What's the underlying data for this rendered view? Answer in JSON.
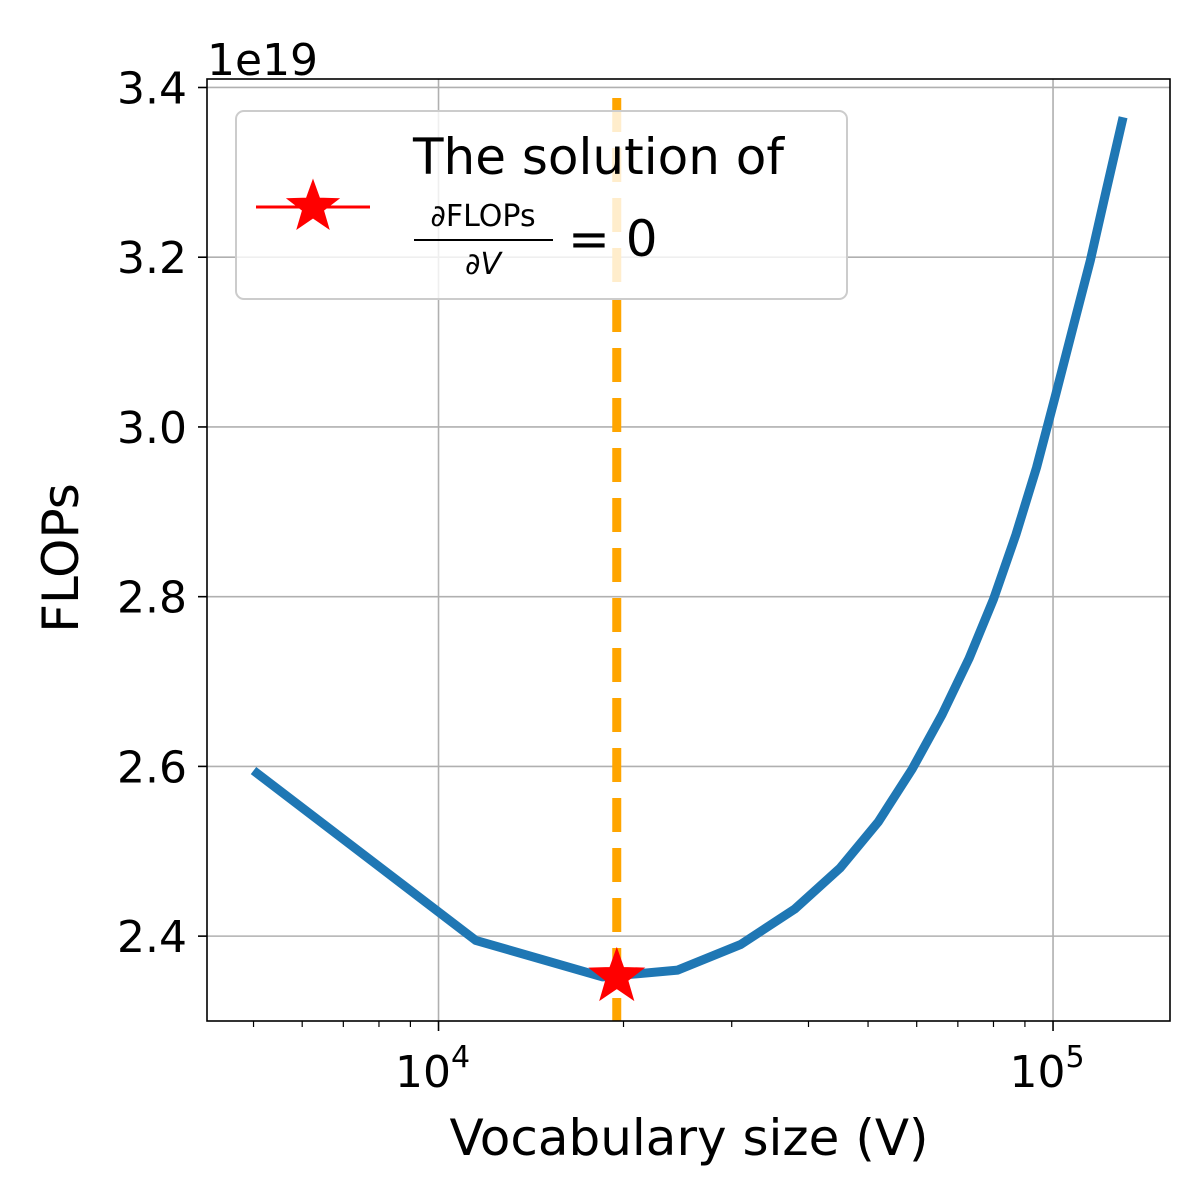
{
  "chart_data": {
    "type": "line",
    "xscale": "log",
    "xlabel": "Vocabulary size (V)",
    "ylabel": "FLOPs",
    "y_offset_label": "1e19",
    "xlim": [
      4200,
      155000
    ],
    "ylim": [
      2.3,
      3.41
    ],
    "x_ticks": [
      {
        "value": 10000,
        "base": "10",
        "exp": "4"
      },
      {
        "value": 100000,
        "base": "10",
        "exp": "5"
      }
    ],
    "y_ticks": [
      {
        "value": 2.4,
        "label": "2.4"
      },
      {
        "value": 2.6,
        "label": "2.6"
      },
      {
        "value": 2.8,
        "label": "2.8"
      },
      {
        "value": 3.0,
        "label": "3.0"
      },
      {
        "value": 3.2,
        "label": "3.2"
      },
      {
        "value": 3.4,
        "label": "3.4"
      }
    ],
    "grid": true,
    "series": [
      {
        "color": "#1f77b4",
        "x": [
          5000,
          11500,
          18500,
          24500,
          31000,
          38000,
          45000,
          52000,
          59000,
          66000,
          73000,
          80000,
          87000,
          94000,
          101000,
          108000,
          115000,
          122000,
          130000
        ],
        "y": [
          2.595,
          2.395,
          2.352,
          2.36,
          2.39,
          2.432,
          2.48,
          2.535,
          2.597,
          2.661,
          2.727,
          2.797,
          2.873,
          2.952,
          3.038,
          3.12,
          3.196,
          3.278,
          3.365
        ]
      }
    ],
    "optimum": {
      "x": 19500,
      "y": 2.352,
      "color": "#ff0000",
      "marker": "star"
    },
    "vline": {
      "x": 19500,
      "color": "#ffa500",
      "style": "dashed"
    },
    "legend": {
      "placement": "upper-left",
      "line1": "The solution of",
      "numerator": "∂FLOPs",
      "denominator": "∂V",
      "rhs": "= 0"
    }
  }
}
